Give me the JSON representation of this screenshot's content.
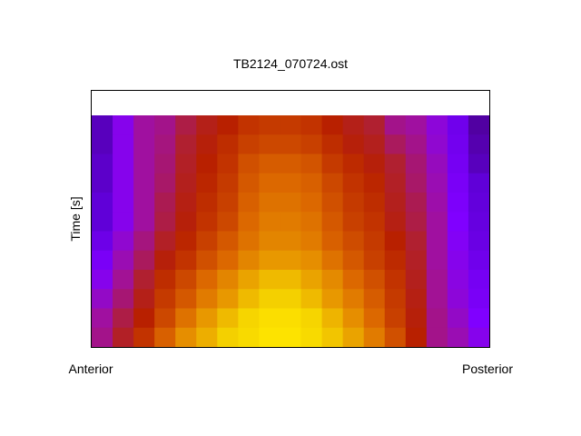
{
  "chart_data": {
    "type": "heatmap",
    "title": "TB2124_070724.ost",
    "xlabel_left": "Anterior",
    "xlabel_right": "Posterior",
    "ylabel": "Time [s]",
    "colormap": [
      "#3a0050",
      "#6000d8",
      "#8000ff",
      "#a010a0",
      "#b02030",
      "#b82000",
      "#c84000",
      "#dc6800",
      "#e89800",
      "#f4d000",
      "#ffe800"
    ],
    "grid": false,
    "values": [
      [
        0.08,
        0.22,
        0.3,
        0.32,
        0.38,
        0.45,
        0.5,
        0.56,
        0.58,
        0.58,
        0.56,
        0.5,
        0.45,
        0.4,
        0.32,
        0.3,
        0.24,
        0.15,
        0.06
      ],
      [
        0.08,
        0.22,
        0.3,
        0.33,
        0.4,
        0.48,
        0.54,
        0.6,
        0.62,
        0.62,
        0.6,
        0.54,
        0.48,
        0.44,
        0.36,
        0.32,
        0.25,
        0.16,
        0.07
      ],
      [
        0.09,
        0.22,
        0.3,
        0.34,
        0.42,
        0.5,
        0.56,
        0.64,
        0.67,
        0.67,
        0.65,
        0.58,
        0.53,
        0.48,
        0.4,
        0.34,
        0.27,
        0.17,
        0.08
      ],
      [
        0.09,
        0.22,
        0.3,
        0.35,
        0.44,
        0.52,
        0.58,
        0.66,
        0.7,
        0.7,
        0.68,
        0.62,
        0.56,
        0.52,
        0.42,
        0.35,
        0.28,
        0.18,
        0.1
      ],
      [
        0.1,
        0.22,
        0.3,
        0.37,
        0.46,
        0.54,
        0.6,
        0.68,
        0.72,
        0.72,
        0.7,
        0.64,
        0.58,
        0.54,
        0.44,
        0.37,
        0.29,
        0.19,
        0.11
      ],
      [
        0.1,
        0.22,
        0.3,
        0.38,
        0.48,
        0.56,
        0.62,
        0.7,
        0.74,
        0.74,
        0.72,
        0.66,
        0.6,
        0.56,
        0.46,
        0.38,
        0.3,
        0.2,
        0.12
      ],
      [
        0.14,
        0.25,
        0.33,
        0.42,
        0.52,
        0.6,
        0.66,
        0.72,
        0.76,
        0.76,
        0.74,
        0.68,
        0.63,
        0.58,
        0.5,
        0.4,
        0.3,
        0.21,
        0.13
      ],
      [
        0.18,
        0.28,
        0.36,
        0.48,
        0.56,
        0.64,
        0.7,
        0.76,
        0.8,
        0.8,
        0.78,
        0.72,
        0.66,
        0.6,
        0.53,
        0.42,
        0.3,
        0.22,
        0.15
      ],
      [
        0.22,
        0.31,
        0.4,
        0.54,
        0.62,
        0.7,
        0.76,
        0.82,
        0.86,
        0.86,
        0.82,
        0.77,
        0.7,
        0.64,
        0.56,
        0.44,
        0.31,
        0.23,
        0.17
      ],
      [
        0.26,
        0.34,
        0.45,
        0.58,
        0.66,
        0.74,
        0.8,
        0.86,
        0.9,
        0.9,
        0.86,
        0.8,
        0.74,
        0.67,
        0.58,
        0.46,
        0.31,
        0.24,
        0.18
      ],
      [
        0.3,
        0.38,
        0.5,
        0.62,
        0.72,
        0.8,
        0.86,
        0.92,
        0.96,
        0.96,
        0.92,
        0.85,
        0.78,
        0.7,
        0.6,
        0.48,
        0.32,
        0.26,
        0.2
      ],
      [
        0.32,
        0.42,
        0.56,
        0.68,
        0.78,
        0.84,
        0.9,
        0.94,
        0.98,
        0.98,
        0.94,
        0.88,
        0.82,
        0.74,
        0.64,
        0.5,
        0.32,
        0.28,
        0.22
      ]
    ]
  }
}
